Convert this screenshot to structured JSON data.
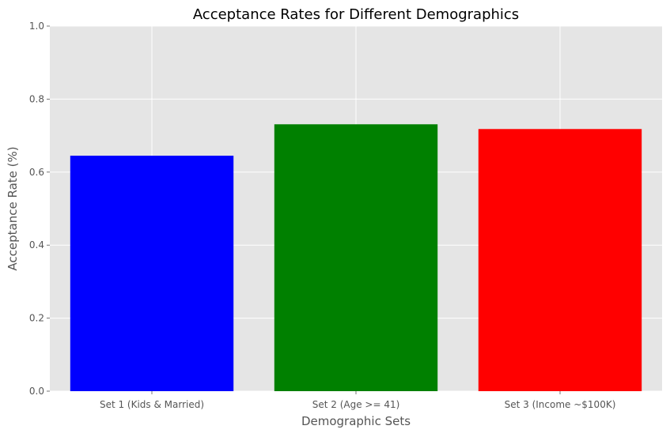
{
  "chart_data": {
    "type": "bar",
    "title": "Acceptance Rates for Different Demographics",
    "xlabel": "Demographic Sets",
    "ylabel": "Acceptance Rate (%)",
    "categories": [
      "Set 1 (Kids & Married)",
      "Set 2 (Age >= 41)",
      "Set 3 (Income ~$100K)"
    ],
    "values": [
      0.645,
      0.731,
      0.718
    ],
    "colors": [
      "#0000ff",
      "#008000",
      "#ff0000"
    ],
    "ylim": [
      0,
      1.0
    ],
    "yticks": [
      0.0,
      0.2,
      0.4,
      0.6,
      0.8,
      1.0
    ],
    "ytick_labels": [
      "0.0",
      "0.2",
      "0.4",
      "0.6",
      "0.8",
      "1.0"
    ],
    "grid": true,
    "background": "#e5e5e5"
  }
}
